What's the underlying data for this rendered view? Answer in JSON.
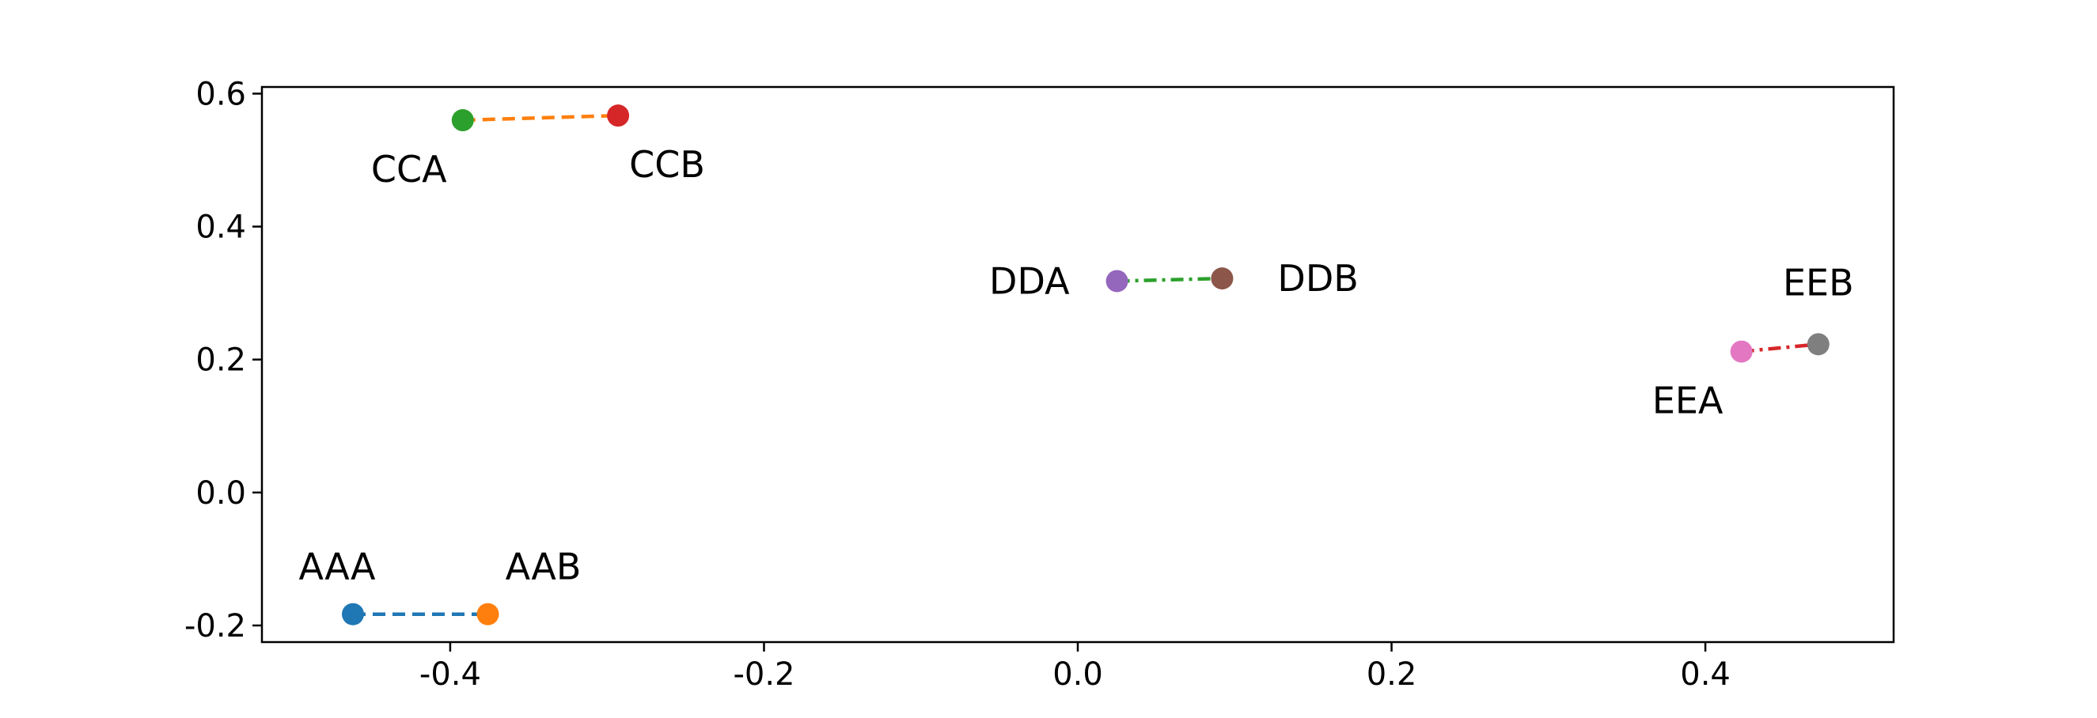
{
  "chart_data": {
    "type": "scatter",
    "title": "",
    "xlabel": "",
    "ylabel": "",
    "xlim": [
      -0.52,
      0.52
    ],
    "ylim": [
      -0.225,
      0.61
    ],
    "grid": false,
    "xticks": [
      -0.4,
      -0.2,
      0.0,
      0.2,
      0.4
    ],
    "xtick_labels": [
      "-0.4",
      "-0.2",
      "0.0",
      "0.2",
      "0.4"
    ],
    "yticks": [
      -0.2,
      0.0,
      0.2,
      0.4,
      0.6
    ],
    "ytick_labels": [
      "-0.2",
      "0.0",
      "0.2",
      "0.4",
      "0.6"
    ],
    "points": [
      {
        "label": "AAA",
        "x": -0.462,
        "y": -0.183,
        "color": "#1f77b4",
        "label_pos": "above-left"
      },
      {
        "label": "AAB",
        "x": -0.376,
        "y": -0.183,
        "color": "#ff7f0e",
        "label_pos": "above-right"
      },
      {
        "label": "CCA",
        "x": -0.392,
        "y": 0.56,
        "color": "#2ca02c",
        "label_pos": "below-left"
      },
      {
        "label": "CCB",
        "x": -0.293,
        "y": 0.567,
        "color": "#d62728",
        "label_pos": "below-right"
      },
      {
        "label": "DDA",
        "x": 0.025,
        "y": 0.318,
        "color": "#9467bd",
        "label_pos": "left"
      },
      {
        "label": "DDB",
        "x": 0.092,
        "y": 0.322,
        "color": "#8c564b",
        "label_pos": "right"
      },
      {
        "label": "EEA",
        "x": 0.423,
        "y": 0.212,
        "color": "#e377c2",
        "label_pos": "below-left"
      },
      {
        "label": "EEB",
        "x": 0.472,
        "y": 0.223,
        "color": "#7f7f7f",
        "label_pos": "above"
      }
    ],
    "connections": [
      {
        "from": "AAA",
        "to": "AAB",
        "color": "#1f77b4",
        "style": "dashed"
      },
      {
        "from": "CCA",
        "to": "CCB",
        "color": "#ff7f0e",
        "style": "dashed"
      },
      {
        "from": "DDA",
        "to": "DDB",
        "color": "#2ca02c",
        "style": "dashdot"
      },
      {
        "from": "EEA",
        "to": "EEB",
        "color": "#d62728",
        "style": "dashdot"
      }
    ]
  }
}
